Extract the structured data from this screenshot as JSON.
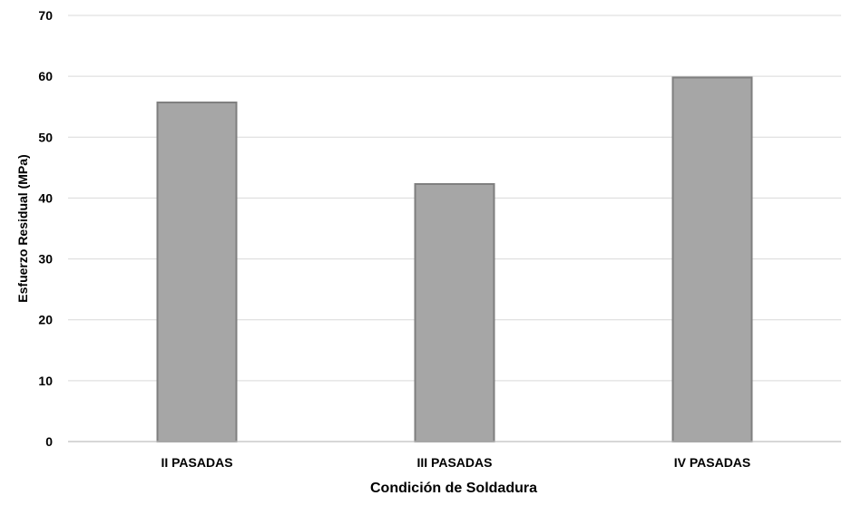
{
  "chart_data": {
    "type": "bar",
    "title": "",
    "xlabel": "Condición de Soldadura",
    "ylabel": "Esfuerzo Residual (MPa)",
    "categories": [
      "II PASADAS",
      "III PASADAS",
      "IV PASADAS"
    ],
    "values": [
      55.7,
      42.3,
      59.8
    ],
    "ylim": [
      0,
      70
    ],
    "yticks": [
      0,
      10,
      20,
      30,
      40,
      50,
      60,
      70
    ],
    "grid": true,
    "legend": "none",
    "colors": {
      "bar_fill": "#a6a6a6",
      "bar_stroke": "#7f7f7f",
      "grid": "#d9d9d9",
      "axis": "#bfbfbf"
    }
  }
}
